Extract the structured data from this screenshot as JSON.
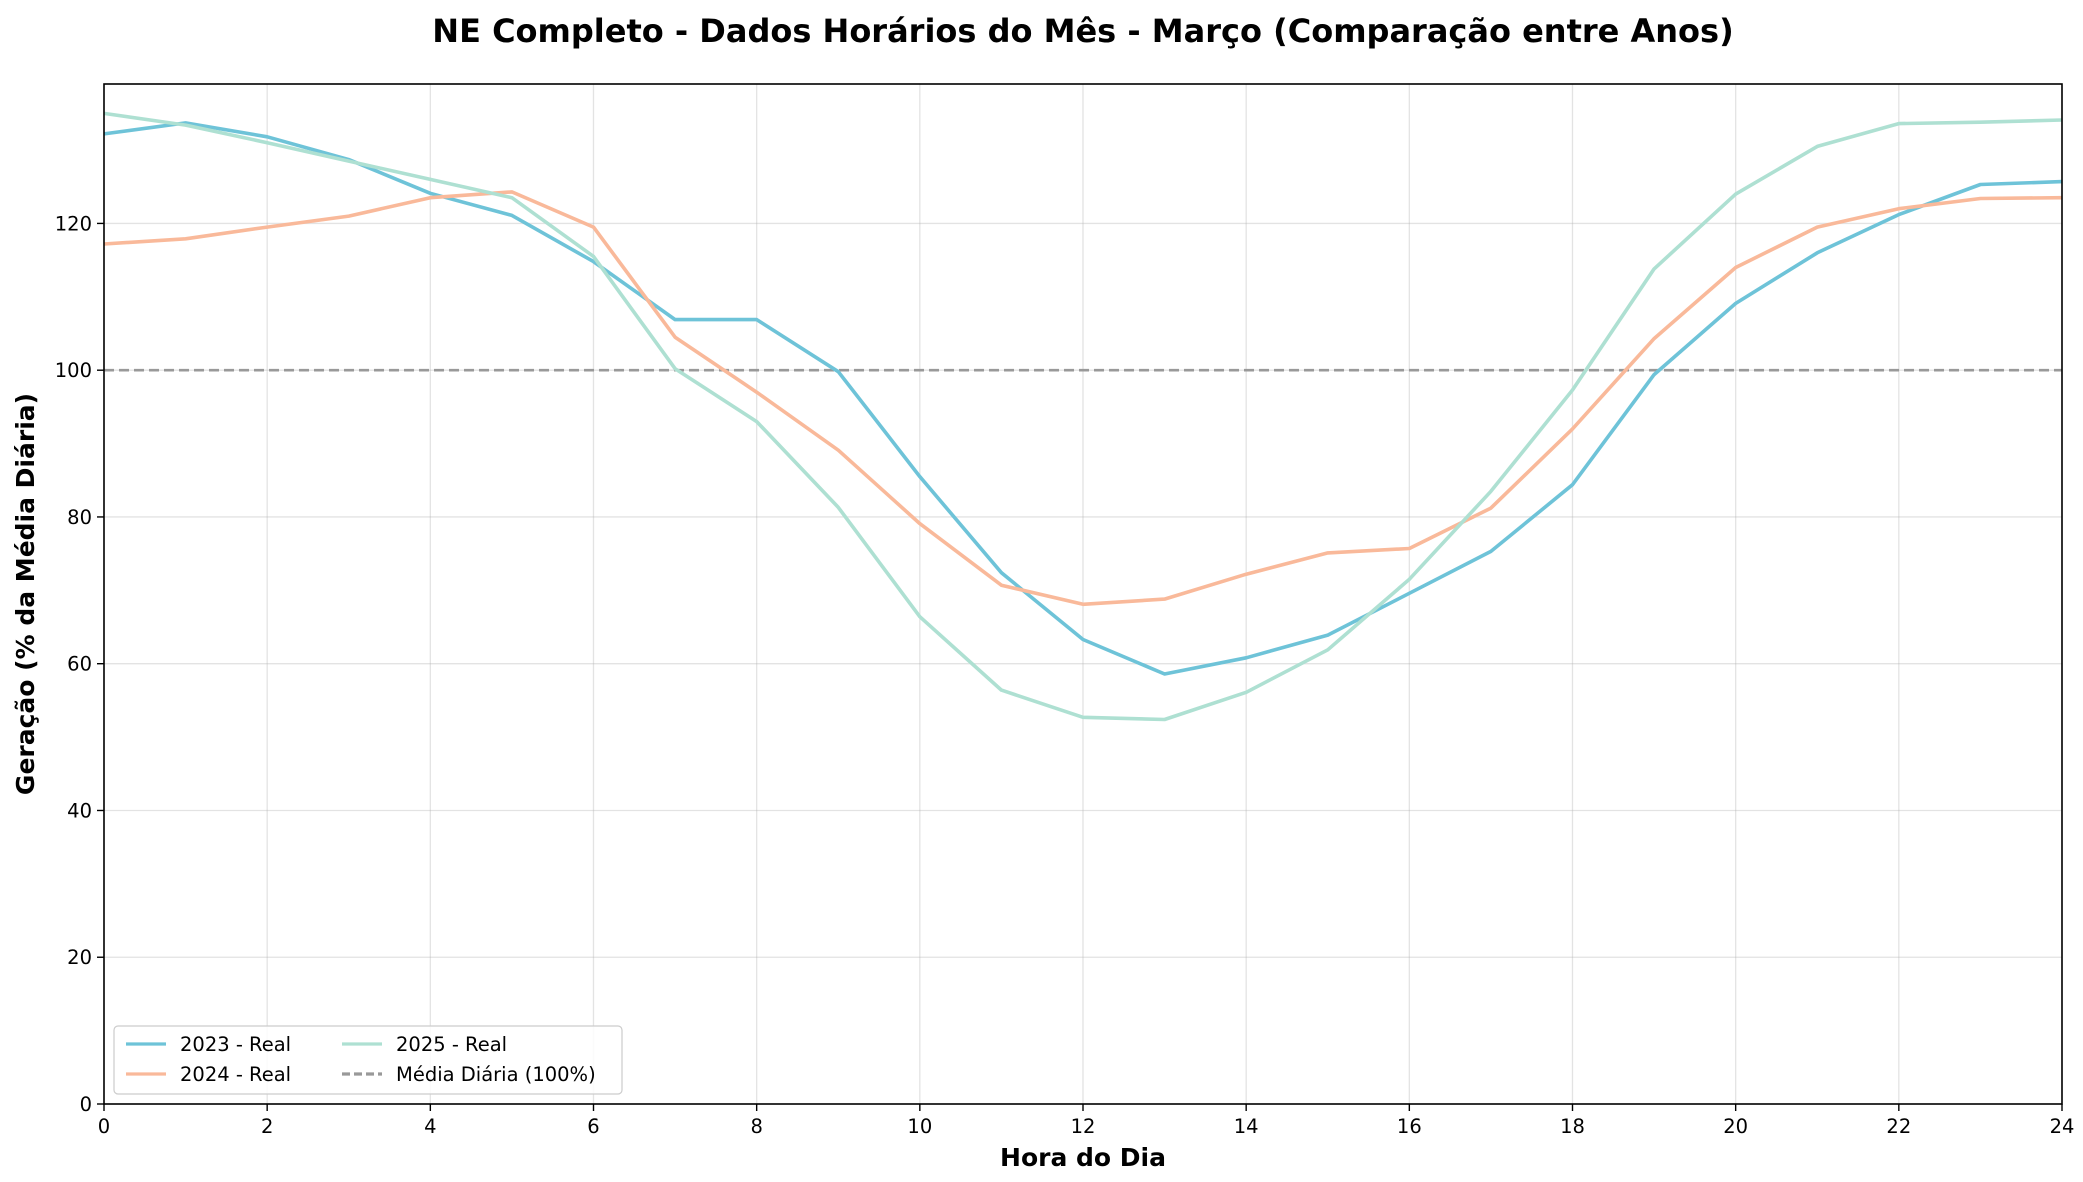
{
  "chart_data": {
    "type": "line",
    "title": "NE Completo - Dados Horários do Mês - Março (Comparação entre Anos)",
    "xlabel": "Hora do Dia",
    "ylabel": "Geração (% da Média Diária)",
    "xlim": [
      0,
      24
    ],
    "ylim": [
      0,
      139
    ],
    "xticks": [
      0,
      2,
      4,
      6,
      8,
      10,
      12,
      14,
      16,
      18,
      20,
      22,
      24
    ],
    "yticks": [
      0,
      20,
      40,
      60,
      80,
      100,
      120
    ],
    "grid": true,
    "legend_position": "lower-left",
    "x": [
      0,
      1,
      2,
      3,
      4,
      5,
      6,
      7,
      8,
      9,
      10,
      11,
      12,
      13,
      14,
      15,
      16,
      17,
      18,
      19,
      20,
      21,
      22,
      23,
      24
    ],
    "series": [
      {
        "name": "2023 - Real",
        "color": "#6ec3d8",
        "values": [
          132.2,
          133.7,
          131.8,
          128.7,
          124.1,
          121.1,
          114.8,
          106.9,
          106.9,
          99.8,
          85.5,
          72.4,
          63.3,
          58.6,
          60.8,
          63.9,
          69.6,
          75.3,
          84.4,
          99.4,
          109.1,
          116.0,
          121.2,
          125.3,
          125.7
        ]
      },
      {
        "name": "2024 - Real",
        "color": "#f9b99a",
        "values": [
          117.2,
          117.9,
          119.5,
          121.0,
          123.5,
          124.3,
          119.5,
          104.5,
          97.0,
          89.1,
          79.1,
          70.7,
          68.1,
          68.8,
          72.2,
          75.1,
          75.7,
          81.2,
          92.0,
          104.3,
          114.0,
          119.5,
          122.0,
          123.4,
          123.5
        ]
      },
      {
        "name": "2025 - Real",
        "color": "#aee0d2",
        "values": [
          135.0,
          133.4,
          131.0,
          128.5,
          126.0,
          123.5,
          115.5,
          100.2,
          93.0,
          81.3,
          66.4,
          56.4,
          52.7,
          52.4,
          56.1,
          61.9,
          71.5,
          83.5,
          97.3,
          113.8,
          124.0,
          130.5,
          133.6,
          133.8,
          134.1
        ]
      }
    ],
    "reference_line": {
      "name": "Média Diária (100%)",
      "y": 100,
      "color": "#999999",
      "style": "dashed"
    }
  }
}
